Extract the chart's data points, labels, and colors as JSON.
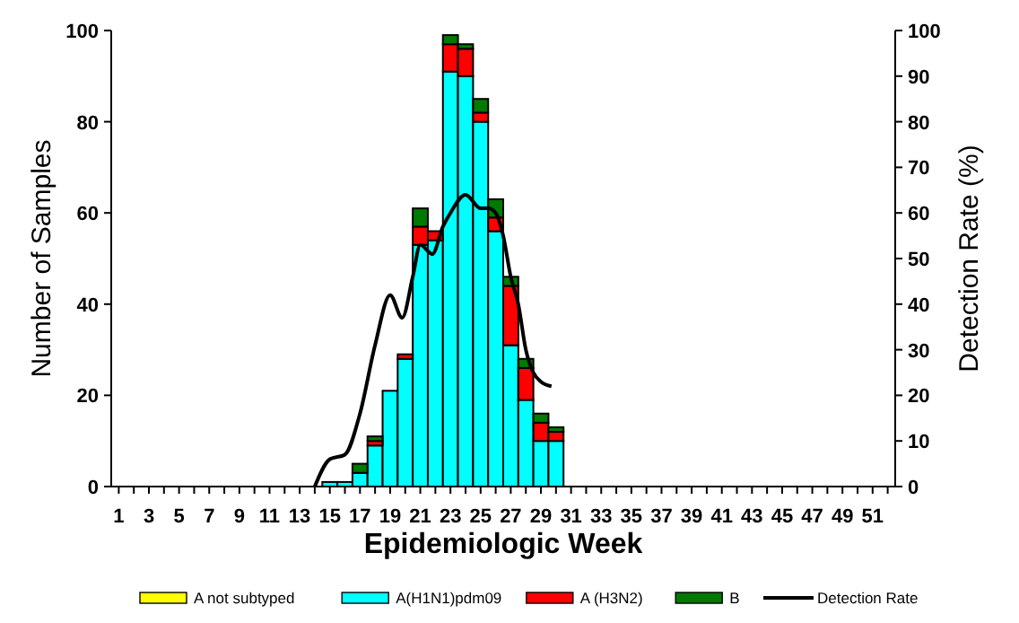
{
  "chart_data": {
    "type": "bar",
    "stacked": true,
    "xlabel": "Epidemiologic Week",
    "ylabel": "Number of Samples",
    "y2label": "Detection Rate (%)",
    "x": [
      15,
      16,
      17,
      18,
      19,
      20,
      21,
      22,
      23,
      24,
      25,
      26,
      27,
      28,
      29,
      30
    ],
    "xlim": [
      0.5,
      52.5
    ],
    "xticks": [
      1,
      {
        "value": 2,
        "label": null
      },
      3,
      {
        "value": 4,
        "label": null
      },
      5,
      {
        "value": 6,
        "label": null
      },
      7,
      {
        "value": 8,
        "label": null
      },
      9,
      {
        "value": 10,
        "label": null
      },
      11,
      {
        "value": 12,
        "label": null
      },
      13,
      {
        "value": 14,
        "label": null
      },
      15,
      {
        "value": 16,
        "label": null
      },
      17,
      {
        "value": 18,
        "label": null
      },
      19,
      {
        "value": 20,
        "label": null
      },
      21,
      {
        "value": 22,
        "label": null
      },
      23,
      {
        "value": 24,
        "label": null
      },
      25,
      {
        "value": 26,
        "label": null
      },
      27,
      {
        "value": 28,
        "label": null
      },
      29,
      {
        "value": 30,
        "label": null
      },
      31,
      {
        "value": 32,
        "label": null
      },
      33,
      {
        "value": 34,
        "label": null
      },
      35,
      {
        "value": 36,
        "label": null
      },
      37,
      {
        "value": 38,
        "label": null
      },
      39,
      {
        "value": 40,
        "label": null
      },
      41,
      {
        "value": 42,
        "label": null
      },
      43,
      {
        "value": 44,
        "label": null
      },
      45,
      {
        "value": 46,
        "label": null
      },
      47,
      {
        "value": 48,
        "label": null
      },
      49,
      {
        "value": 50,
        "label": null
      },
      51,
      {
        "value": 52,
        "label": null
      }
    ],
    "ylim": [
      0,
      100
    ],
    "yticks": [
      0,
      20,
      40,
      60,
      80,
      100
    ],
    "y2lim": [
      0,
      100
    ],
    "y2ticks": [
      0,
      10,
      20,
      30,
      40,
      50,
      60,
      70,
      80,
      90,
      100
    ],
    "legend": "bottom",
    "grid": false,
    "series": [
      {
        "name": "A not subtyped",
        "color": "#ffff00",
        "values": [
          0,
          0,
          0,
          0,
          0,
          0,
          0,
          0,
          0,
          0,
          0,
          0,
          0,
          0,
          0,
          0
        ]
      },
      {
        "name": "A(H1N1)pdm09",
        "color": "#00ffff",
        "values": [
          1,
          1,
          3,
          9,
          21,
          28,
          53,
          54,
          91,
          90,
          80,
          56,
          31,
          19,
          10,
          10
        ]
      },
      {
        "name": "A (H3N2)",
        "color": "#ff0000",
        "values": [
          0,
          0,
          0,
          1,
          0,
          1,
          4,
          2,
          6,
          6,
          2,
          3,
          13,
          7,
          4,
          2
        ]
      },
      {
        "name": "B",
        "color": "#007a00",
        "values": [
          0,
          0,
          2,
          1,
          0,
          0,
          4,
          0,
          2,
          1,
          3,
          4,
          2,
          2,
          2,
          1
        ]
      },
      {
        "name": "Detection Rate",
        "type": "line",
        "axis": "y2",
        "color": "#000000",
        "x": [
          14,
          15,
          16,
          17,
          18,
          19,
          19.8,
          20.5,
          21,
          21.8,
          22.5,
          23,
          24,
          25,
          25.5,
          26,
          26.5,
          27,
          27.5,
          28,
          28.5,
          29,
          29.7
        ],
        "values": [
          0,
          6,
          7,
          16,
          31,
          42,
          37,
          46,
          53,
          51,
          57,
          60,
          64,
          61,
          61,
          60,
          55,
          46,
          40,
          30,
          25,
          23,
          22
        ]
      }
    ]
  }
}
